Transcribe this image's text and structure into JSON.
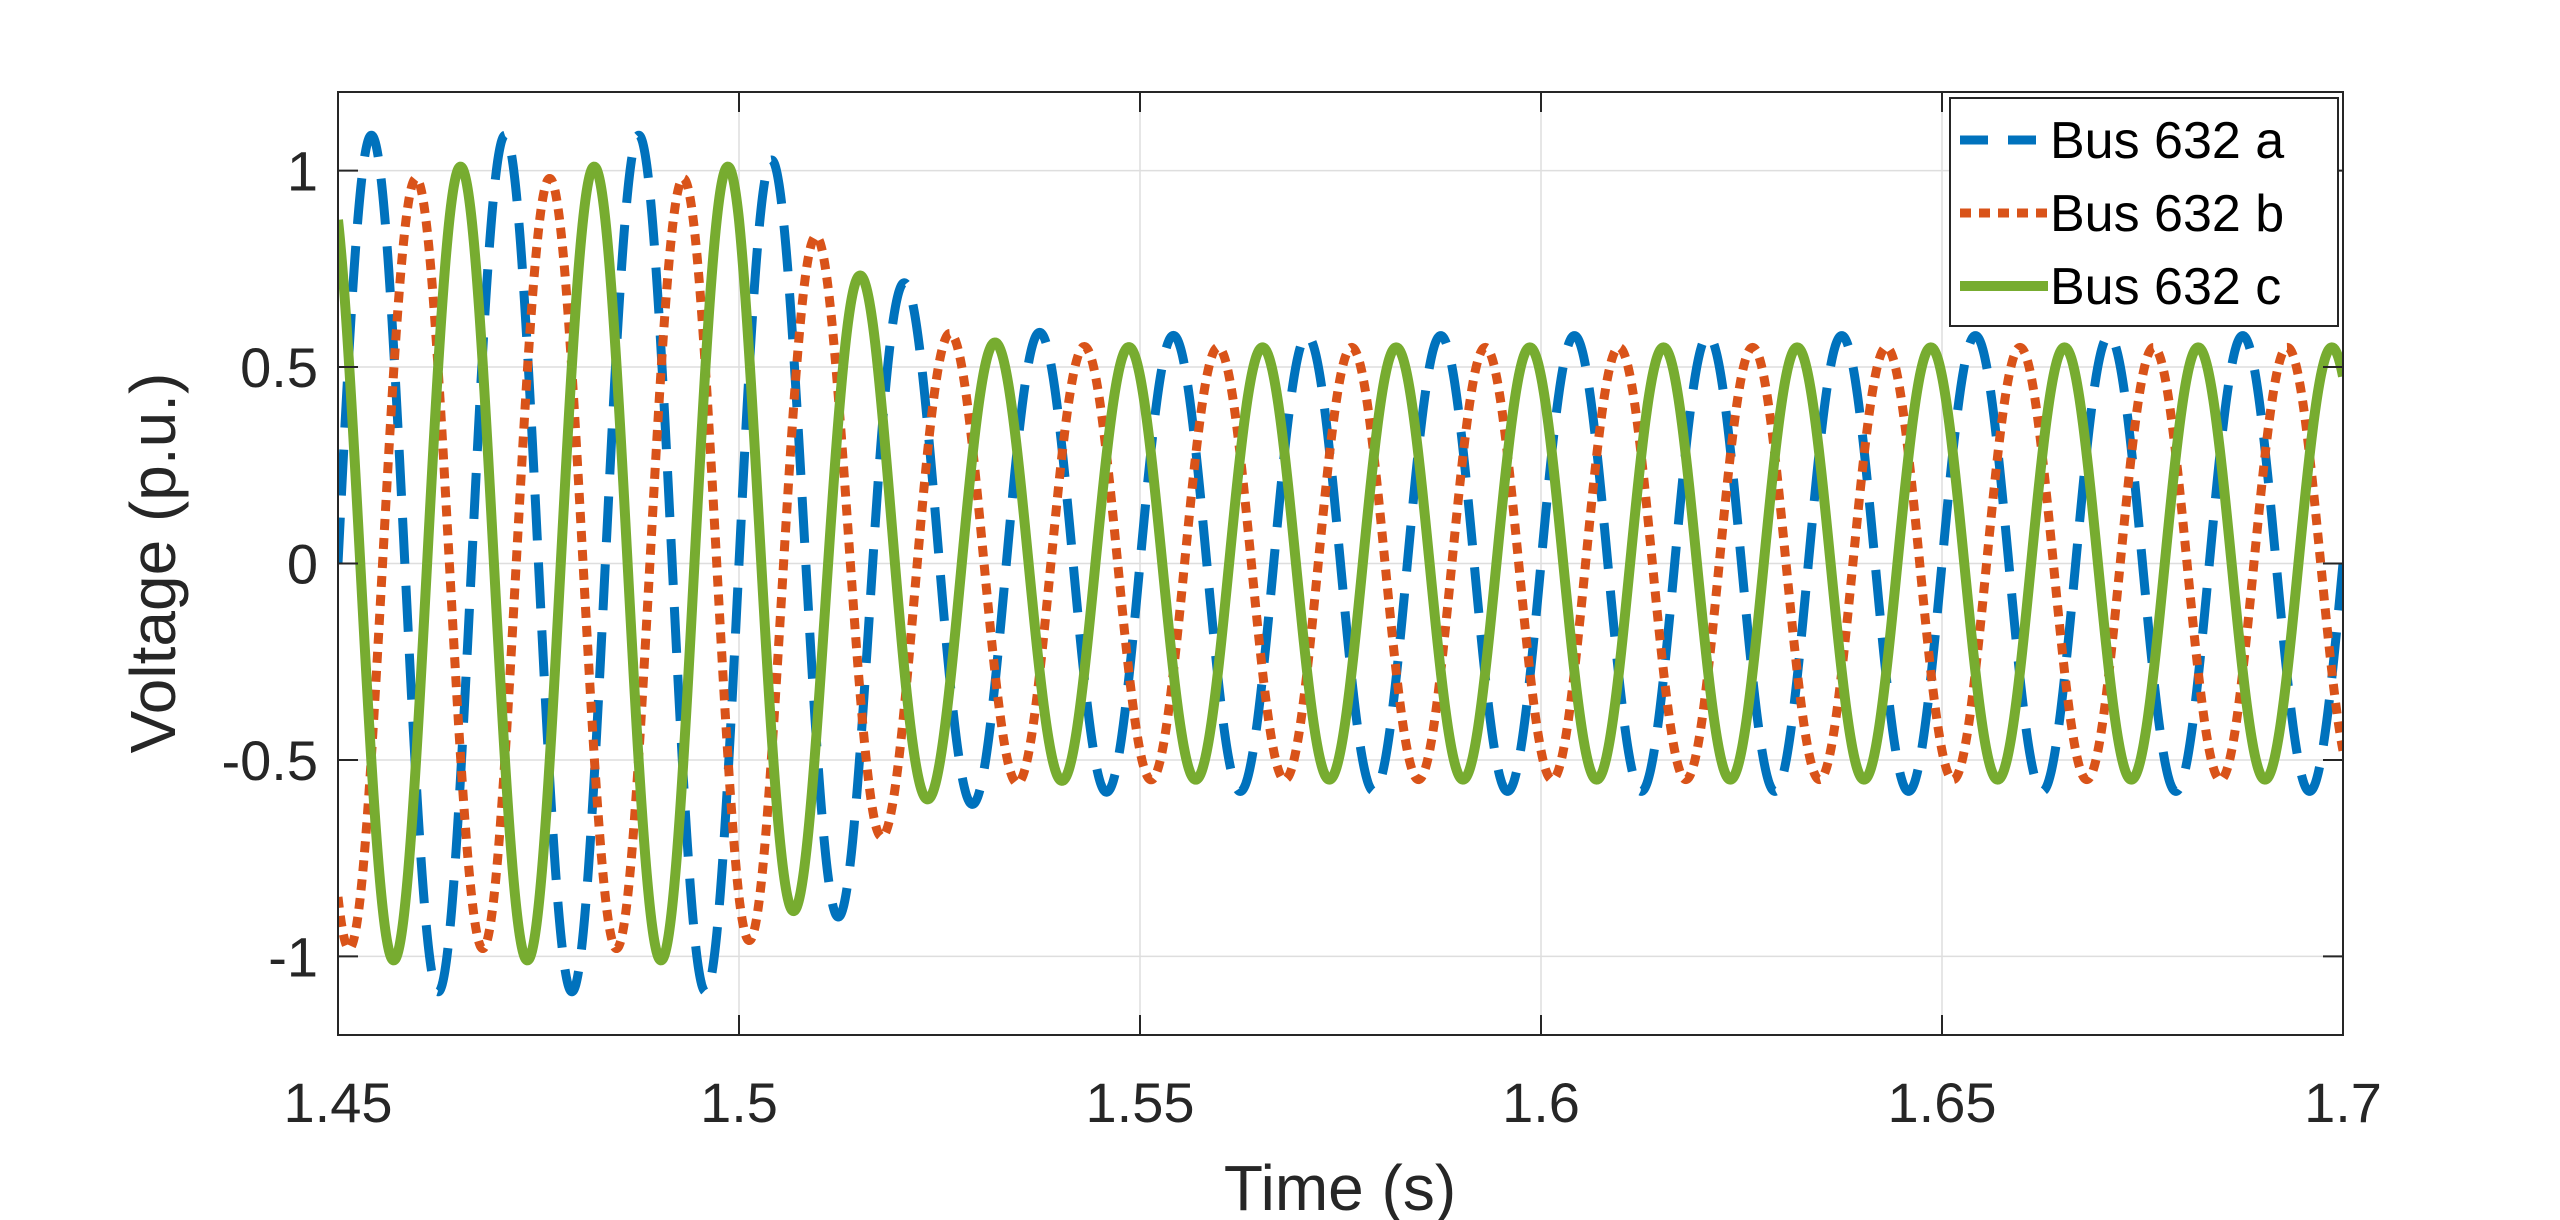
{
  "chart_data": {
    "type": "line",
    "xlabel": "Time (s)",
    "ylabel": "Voltage (p.u.)",
    "xlim": [
      1.45,
      1.7
    ],
    "ylim": [
      -1.2,
      1.2
    ],
    "xticks": [
      1.45,
      1.5,
      1.55,
      1.6,
      1.65,
      1.7
    ],
    "xtick_labels": [
      "1.45",
      "1.5",
      "1.55",
      "1.6",
      "1.65",
      "1.7"
    ],
    "yticks": [
      -1,
      -0.5,
      0,
      0.5,
      1
    ],
    "ytick_labels": [
      "-1",
      "-0.5",
      "0",
      "0.5",
      "1"
    ],
    "grid": true,
    "legend_position": "top-right",
    "fault_interval": [
      1.5,
      1.517
    ],
    "frequency_hz": 60,
    "amplitude_pre_fault": 1.02,
    "amplitude_post_fault": 0.56,
    "series": [
      {
        "name": "Bus 632 a",
        "color": "#0072BD",
        "style": "dashed",
        "amplitude_pre": 1.09,
        "amplitude_transition_end": 0.83,
        "amplitude_post": 0.58,
        "phase_deg": 0,
        "key_points": [
          [
            1.45,
            0.0
          ],
          [
            1.4542,
            1.08
          ],
          [
            1.4625,
            -1.08
          ],
          [
            1.5,
            0.0
          ],
          [
            1.6,
            0.0
          ],
          [
            1.7,
            0.0
          ]
        ]
      },
      {
        "name": "Bus 632 b",
        "color": "#D95319",
        "style": "dotted",
        "amplitude_pre": 0.98,
        "amplitude_transition_end": 0.72,
        "amplitude_post": 0.55,
        "phase_deg": -120,
        "key_points": [
          [
            1.45,
            -0.85
          ],
          [
            1.4597,
            0.98
          ],
          [
            1.468,
            -0.98
          ]
        ]
      },
      {
        "name": "Bus 632 c",
        "color": "#77AC30",
        "style": "solid",
        "amplitude_pre": 1.01,
        "amplitude_transition_end": 0.7,
        "amplitude_post": 0.55,
        "phase_deg": 120,
        "key_points": [
          [
            1.45,
            0.85
          ],
          [
            1.4569,
            -1.01
          ],
          [
            1.4653,
            1.01
          ]
        ]
      }
    ]
  }
}
